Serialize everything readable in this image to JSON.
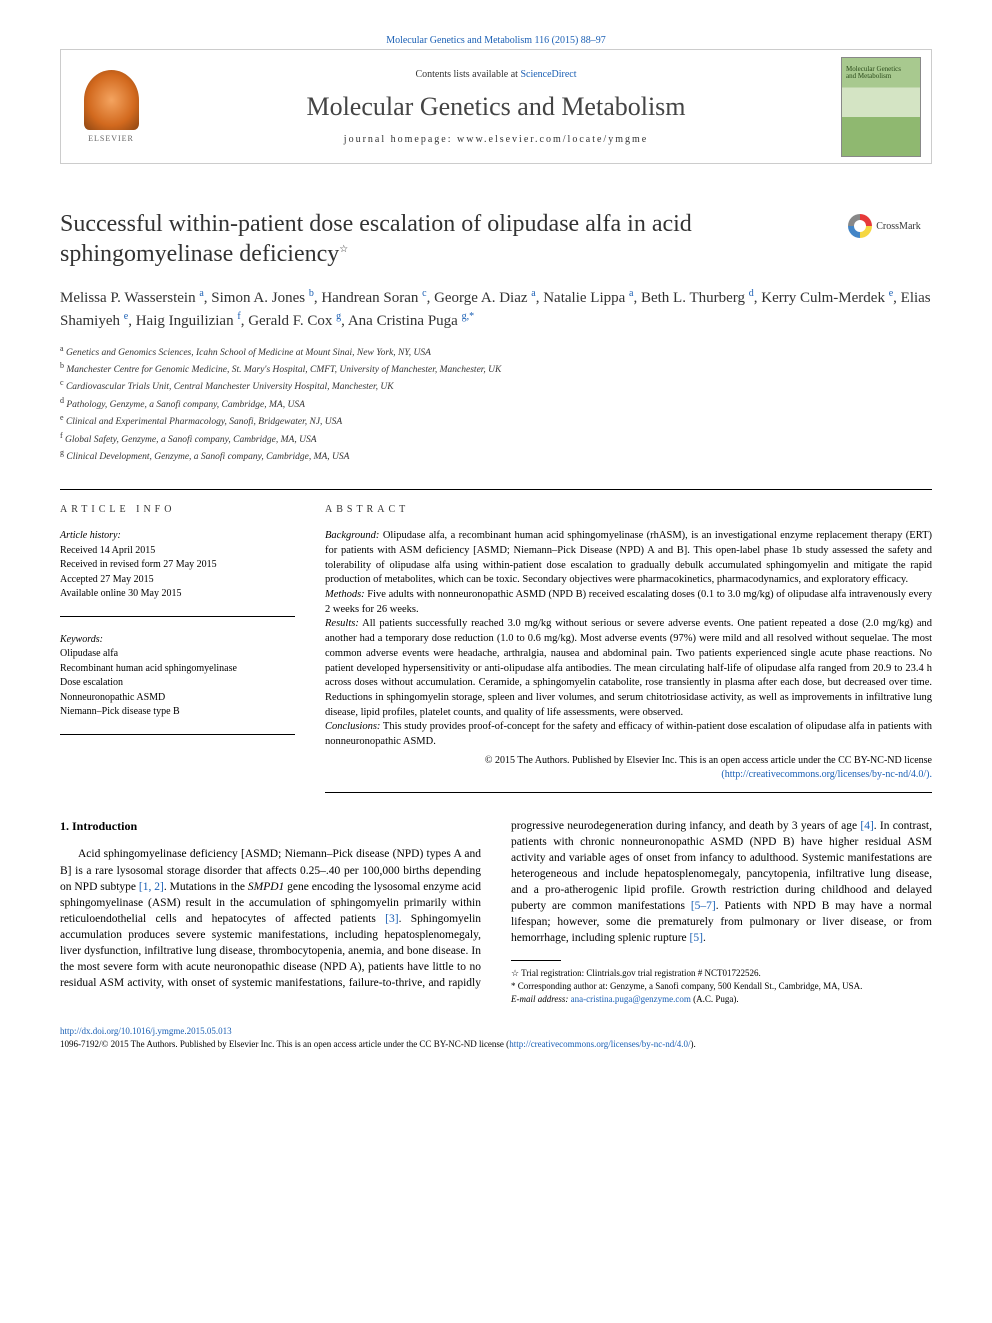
{
  "top_citation": "Molecular Genetics and Metabolism 116 (2015) 88–97",
  "header": {
    "contents_prefix": "Contents lists available at ",
    "contents_link": "ScienceDirect",
    "journal": "Molecular Genetics and Metabolism",
    "homepage_label": "journal homepage: www.elsevier.com/locate/ymgme",
    "elsevier_label": "ELSEVIER",
    "cover_title_1": "Molecular Genetics",
    "cover_title_2": "and Metabolism"
  },
  "crossmark": "CrossMark",
  "title": "Successful within-patient dose escalation of olipudase alfa in acid sphingomyelinase deficiency",
  "title_star": "☆",
  "authors_html": "Melissa P. Wasserstein <sup>a</sup>, Simon A. Jones <sup>b</sup>, Handrean Soran <sup>c</sup>, George A. Diaz <sup>a</sup>, Natalie Lippa <sup>a</sup>, Beth L. Thurberg <sup>d</sup>, Kerry Culm-Merdek <sup>e</sup>, Elias Shamiyeh <sup>e</sup>, Haig Inguilizian <sup>f</sup>, Gerald F. Cox <sup>g</sup>, Ana Cristina Puga <sup>g,*</sup>",
  "affiliations": [
    {
      "sup": "a",
      "text": "Genetics and Genomics Sciences, Icahn School of Medicine at Mount Sinai, New York, NY, USA"
    },
    {
      "sup": "b",
      "text": "Manchester Centre for Genomic Medicine, St. Mary's Hospital, CMFT, University of Manchester, Manchester, UK"
    },
    {
      "sup": "c",
      "text": "Cardiovascular Trials Unit, Central Manchester University Hospital, Manchester, UK"
    },
    {
      "sup": "d",
      "text": "Pathology, Genzyme, a Sanofi company, Cambridge, MA, USA"
    },
    {
      "sup": "e",
      "text": "Clinical and Experimental Pharmacology, Sanofi, Bridgewater, NJ, USA"
    },
    {
      "sup": "f",
      "text": "Global Safety, Genzyme, a Sanofi company, Cambridge, MA, USA"
    },
    {
      "sup": "g",
      "text": "Clinical Development, Genzyme, a Sanofi company, Cambridge, MA, USA"
    }
  ],
  "info": {
    "label": "article info",
    "history_head": "Article history:",
    "history": [
      "Received 14 April 2015",
      "Received in revised form 27 May 2015",
      "Accepted 27 May 2015",
      "Available online 30 May 2015"
    ],
    "keywords_head": "Keywords:",
    "keywords": [
      "Olipudase alfa",
      "Recombinant human acid sphingomyelinase",
      "Dose escalation",
      "Nonneuronopathic ASMD",
      "Niemann–Pick disease type B"
    ]
  },
  "abstract": {
    "label": "abstract",
    "background_head": "Background:",
    "background": " Olipudase alfa, a recombinant human acid sphingomyelinase (rhASM), is an investigational enzyme replacement therapy (ERT) for patients with ASM deficiency [ASMD; Niemann–Pick Disease (NPD) A and B]. This open-label phase 1b study assessed the safety and tolerability of olipudase alfa using within-patient dose escalation to gradually debulk accumulated sphingomyelin and mitigate the rapid production of metabolites, which can be toxic. Secondary objectives were pharmacokinetics, pharmacodynamics, and exploratory efficacy.",
    "methods_head": "Methods:",
    "methods": " Five adults with nonneuronopathic ASMD (NPD B) received escalating doses (0.1 to 3.0 mg/kg) of olipudase alfa intravenously every 2 weeks for 26 weeks.",
    "results_head": "Results:",
    "results": " All patients successfully reached 3.0 mg/kg without serious or severe adverse events. One patient repeated a dose (2.0 mg/kg) and another had a temporary dose reduction (1.0 to 0.6 mg/kg). Most adverse events (97%) were mild and all resolved without sequelae. The most common adverse events were headache, arthralgia, nausea and abdominal pain. Two patients experienced single acute phase reactions. No patient developed hypersensitivity or anti-olipudase alfa antibodies. The mean circulating half-life of olipudase alfa ranged from 20.9 to 23.4 h across doses without accumulation. Ceramide, a sphingomyelin catabolite, rose transiently in plasma after each dose, but decreased over time. Reductions in sphingomyelin storage, spleen and liver volumes, and serum chitotriosidase activity, as well as improvements in infiltrative lung disease, lipid profiles, platelet counts, and quality of life assessments, were observed.",
    "conclusions_head": "Conclusions:",
    "conclusions": " This study provides proof-of-concept for the safety and efficacy of within-patient dose escalation of olipudase alfa in patients with nonneuronopathic ASMD.",
    "copyright": "© 2015 The Authors. Published by Elsevier Inc. This is an open access article under the CC BY-NC-ND license",
    "license_link": "(http://creativecommons.org/licenses/by-nc-nd/4.0/)."
  },
  "intro": {
    "heading": "1. Introduction",
    "p1_a": "Acid sphingomyelinase deficiency [ASMD; Niemann–Pick disease (NPD) types A and B] is a rare lysosomal storage disorder that affects 0.25–.40 per 100,000 births depending on NPD subtype ",
    "p1_ref1": "[1, 2]",
    "p1_b": ". Mutations in the ",
    "p1_gene": "SMPD1",
    "p1_c": " gene encoding the lysosomal enzyme acid sphingomyelinase (ASM) result in the accumulation of sphingomyelin primarily within reticuloendothelial cells and hepatocytes of affected patients ",
    "p1_ref2": "[3]",
    "p1_d": ". Sphingomyelin accumulation produces severe systemic manifestations, including hepatosplenomegaly, liver dysfunction, infiltrative lung disease, thrombocytopenia, anemia, and bone disease. In the most severe form with acute neuronopathic disease (NPD A), patients have little to no residual ASM activity, with onset of systemic manifestations, failure-to-thrive, and rapidly progressive neurodegeneration during infancy, and death by 3 years of age ",
    "p1_ref3": "[4]",
    "p1_e": ". In contrast, patients with chronic nonneuronopathic ASMD (NPD B) have higher residual ASM activity and variable ages of onset from infancy to adulthood. Systemic manifestations are heterogeneous and include hepatosplenomegaly, pancytopenia, infiltrative lung disease, and a pro-atherogenic lipid profile. Growth restriction during childhood and delayed puberty are common manifestations ",
    "p1_ref4": "[5–7]",
    "p1_f": ". Patients with NPD B may have a normal lifespan; however, some die prematurely from pulmonary or liver disease, or from hemorrhage, including splenic rupture ",
    "p1_ref5": "[5]",
    "p1_g": "."
  },
  "footnotes": {
    "trial": "Trial registration: Clintrials.gov trial registration # NCT01722526.",
    "corr": "Corresponding author at: Genzyme, a Sanofi company, 500 Kendall St., Cambridge, MA, USA.",
    "email_label": "E-mail address: ",
    "email": "ana-cristina.puga@genzyme.com",
    "email_suffix": " (A.C. Puga)."
  },
  "footer": {
    "doi": "http://dx.doi.org/10.1016/j.ymgme.2015.05.013",
    "issn_line": "1096-7192/© 2015 The Authors. Published by Elsevier Inc. This is an open access article under the CC BY-NC-ND license (",
    "license_link": "http://creativecommons.org/licenses/by-nc-nd/4.0/",
    "issn_close": ")."
  },
  "colors": {
    "link": "#1a5fb4",
    "text": "#000000",
    "heading": "#333333",
    "border": "#cccccc"
  }
}
